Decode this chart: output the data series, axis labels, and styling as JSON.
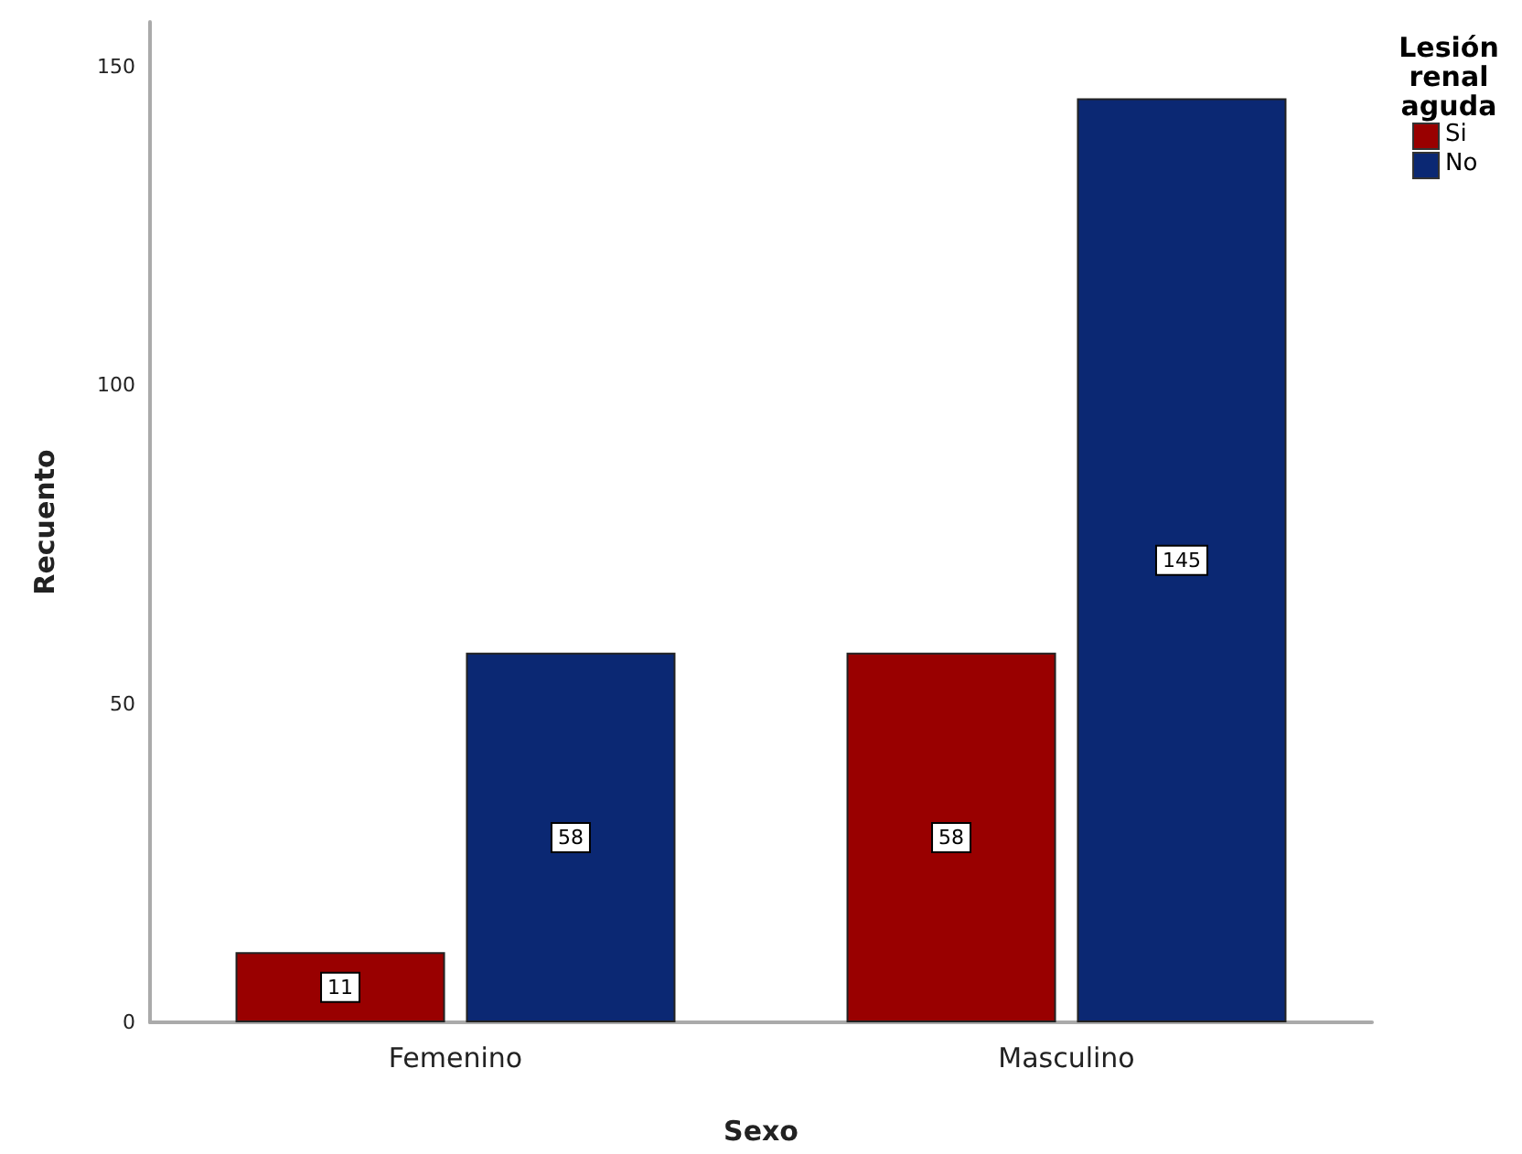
{
  "chart_data": {
    "type": "bar",
    "xlabel": "Sexo",
    "ylabel": "Recuento",
    "legend_title": "Lesión renal aguda",
    "categories": [
      "Femenino",
      "Masculino"
    ],
    "series": [
      {
        "name": "Si",
        "color": "#990000",
        "values": [
          11,
          58
        ]
      },
      {
        "name": "No",
        "color": "#0b2873",
        "values": [
          58,
          145
        ]
      }
    ],
    "ylim": [
      0,
      157
    ],
    "yticks": [
      0,
      50,
      100,
      150
    ],
    "grid": false,
    "legend": "top right",
    "data_labels": true
  }
}
